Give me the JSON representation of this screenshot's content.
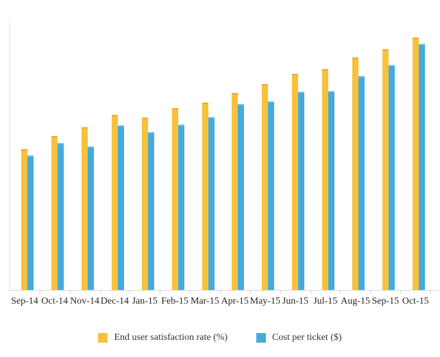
{
  "chart_data": {
    "type": "bar",
    "title": "",
    "xlabel": "",
    "ylabel": "",
    "ylim": [
      0,
      100
    ],
    "grid": false,
    "y_axis_tick_labels_visible": false,
    "legend_position": "bottom",
    "categories": [
      "Sep-14",
      "Oct-14",
      "Nov-14",
      "Dec-14",
      "Jan-15",
      "Feb-15",
      "Mar-15",
      "Apr-15",
      "May-15",
      "Jun-15",
      "Jul-15",
      "Aug-15",
      "Sep-15",
      "Oct-15"
    ],
    "series": [
      {
        "key": "satisfaction",
        "name": "End user satisfaction rate (%)",
        "color": "#F8C13C",
        "cap_color": "#EFA932",
        "values": [
          52.7,
          57.5,
          60.9,
          65.5,
          64.5,
          68.0,
          70.1,
          73.7,
          77.0,
          80.8,
          82.6,
          87.0,
          90.0,
          94.4
        ]
      },
      {
        "key": "cost",
        "name": "Cost per ticket ($)",
        "color": "#46AADC",
        "cap_color": "#7EC6E9",
        "values": [
          50.4,
          55.0,
          53.7,
          61.6,
          59.1,
          61.9,
          64.7,
          69.6,
          70.6,
          74.2,
          74.4,
          80.1,
          84.1,
          92.1
        ]
      }
    ],
    "colors": {
      "axis": "#d9d9d9",
      "tick": "#d0d0d0",
      "label_text": "#262626",
      "legend_text": "#333333",
      "background": "#ffffff"
    }
  }
}
